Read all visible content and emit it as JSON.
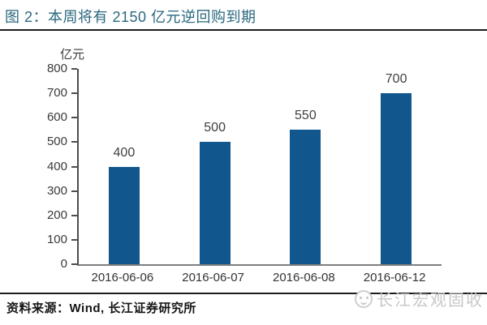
{
  "header": {
    "title": "图 2：本周将有 2150 亿元逆回购到期",
    "title_color": "#2A687E"
  },
  "chart_data": {
    "type": "bar",
    "categories": [
      "2016-06-06",
      "2016-06-07",
      "2016-06-08",
      "2016-06-12"
    ],
    "values": [
      400,
      500,
      550,
      700
    ],
    "title": "",
    "xlabel": "",
    "ylabel": "亿元",
    "ylim": [
      0,
      800
    ],
    "y_ticks": [
      0,
      100,
      200,
      300,
      400,
      500,
      600,
      700,
      800
    ],
    "grid": false,
    "legend": "none",
    "value_labels_shown": true,
    "bar_color": "#11568C"
  },
  "footer": {
    "source": "资料来源：Wind, 长江证券研究所"
  },
  "watermark": {
    "icon": "smiley-logo",
    "text": "长江宏观固收",
    "color": "#c8c8c8"
  }
}
